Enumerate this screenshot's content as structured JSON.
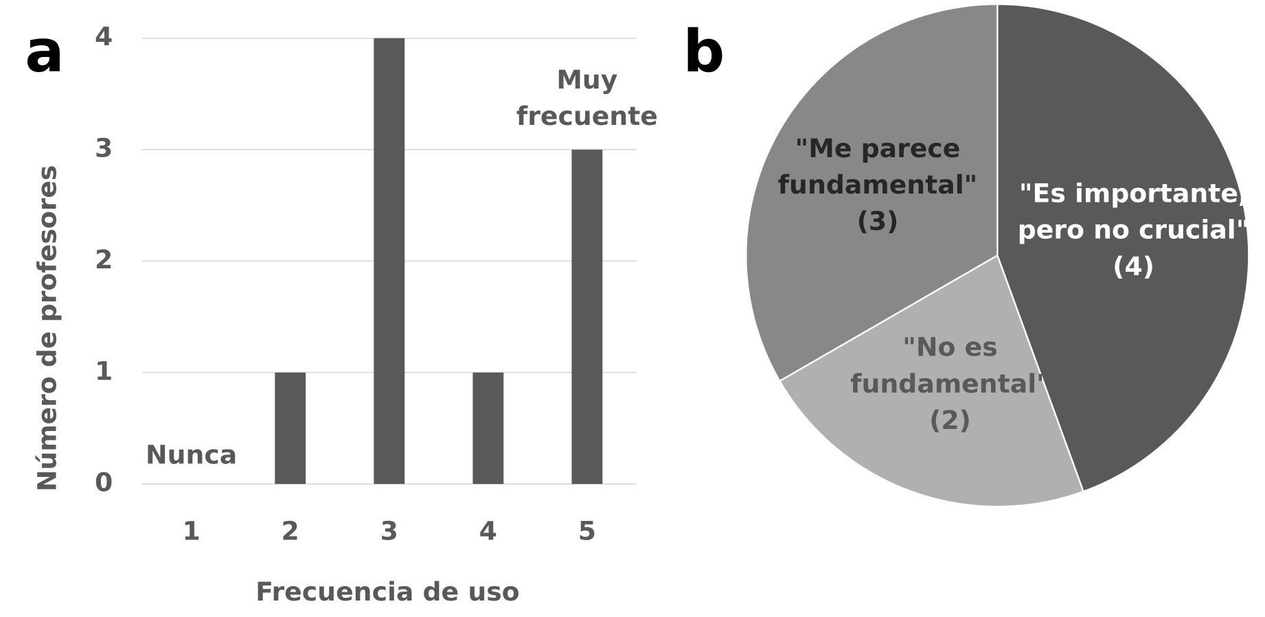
{
  "chart_data": [
    {
      "type": "bar",
      "panel": "a",
      "categories": [
        "1",
        "2",
        "3",
        "4",
        "5"
      ],
      "values": [
        0,
        1,
        4,
        1,
        3
      ],
      "color": "#595959",
      "xlabel": "Frecuencia de uso",
      "ylabel": "Número de profesores",
      "ylim": [
        0,
        4
      ],
      "yticks": [
        0,
        1,
        2,
        3,
        4
      ],
      "grid": true,
      "annotations": [
        [
          "Nunca"
        ],
        [
          "Muy",
          "frecuente"
        ]
      ]
    },
    {
      "type": "pie",
      "panel": "b",
      "labels": [
        [
          "\"Es importante,",
          "pero no crucial\""
        ],
        [
          "\"No es",
          "fundamental\""
        ],
        [
          "\"Me parece",
          "fundamental\""
        ]
      ],
      "values": [
        4,
        2,
        3
      ],
      "value_labels": [
        "(4)",
        "(2)",
        "(3)"
      ],
      "colors": [
        "#595959",
        "#b0b0b0",
        "#888888"
      ],
      "text_colors": [
        "#ffffff",
        "#595959",
        "#262626"
      ]
    }
  ]
}
